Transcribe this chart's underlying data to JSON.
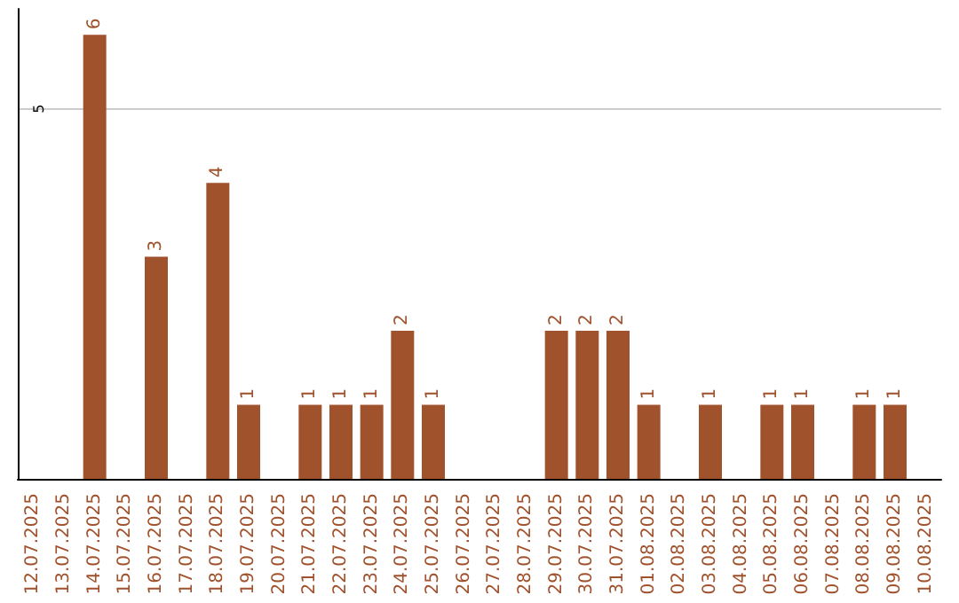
{
  "chart_data": {
    "type": "bar",
    "categories": [
      "12.07.2025",
      "13.07.2025",
      "14.07.2025",
      "15.07.2025",
      "16.07.2025",
      "17.07.2025",
      "18.07.2025",
      "19.07.2025",
      "20.07.2025",
      "21.07.2025",
      "22.07.2025",
      "23.07.2025",
      "24.07.2025",
      "25.07.2025",
      "26.07.2025",
      "27.07.2025",
      "28.07.2025",
      "29.07.2025",
      "30.07.2025",
      "31.07.2025",
      "01.08.2025",
      "02.08.2025",
      "03.08.2025",
      "04.08.2025",
      "05.08.2025",
      "06.08.2025",
      "07.08.2025",
      "08.08.2025",
      "09.08.2025",
      "10.08.2025"
    ],
    "values": [
      0,
      0,
      6,
      0,
      3,
      0,
      4,
      1,
      0,
      1,
      1,
      1,
      2,
      1,
      0,
      0,
      0,
      2,
      2,
      2,
      1,
      0,
      1,
      0,
      1,
      1,
      0,
      1,
      1,
      0
    ],
    "value_labels": [
      null,
      null,
      "6",
      null,
      "3",
      null,
      "4",
      "1",
      null,
      "1",
      "1",
      "1",
      "2",
      "1",
      null,
      null,
      null,
      "2",
      "2",
      "2",
      "1",
      null,
      "1",
      null,
      "1",
      "1",
      null,
      "1",
      "1",
      null
    ],
    "color": "#a0522d",
    "ylim": [
      0,
      6.35
    ],
    "yticks": [
      5
    ],
    "grid": "y"
  }
}
